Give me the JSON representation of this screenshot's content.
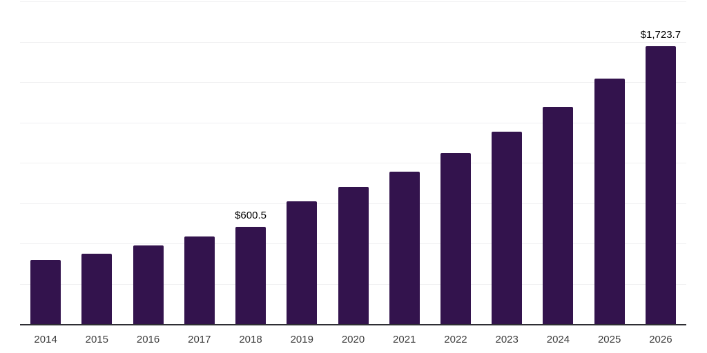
{
  "chart_data": {
    "type": "bar",
    "title": "",
    "xlabel": "",
    "ylabel": "",
    "categories": [
      "2014",
      "2015",
      "2016",
      "2017",
      "2018",
      "2019",
      "2020",
      "2021",
      "2022",
      "2023",
      "2024",
      "2025",
      "2026"
    ],
    "values": [
      395.3,
      437.9,
      489.0,
      542.7,
      600.5,
      760.1,
      848.4,
      945.2,
      1061.6,
      1193.7,
      1345.9,
      1520.7,
      1723.7
    ],
    "labeled_points": [
      {
        "category": "2018",
        "label": "$600.5"
      },
      {
        "category": "2026",
        "label": "$1,723.7"
      }
    ],
    "ylim": [
      0,
      2000
    ],
    "grid_step": 250,
    "grid": "on",
    "y_tick_labels_visible": false,
    "legend": "none",
    "colors": {
      "bar": "#33134d",
      "grid": "#f0f0f1",
      "axis": "#2e2e33",
      "value_label": "#000000",
      "tick_label": "#3d3d3d",
      "background": "#ffffff"
    }
  }
}
